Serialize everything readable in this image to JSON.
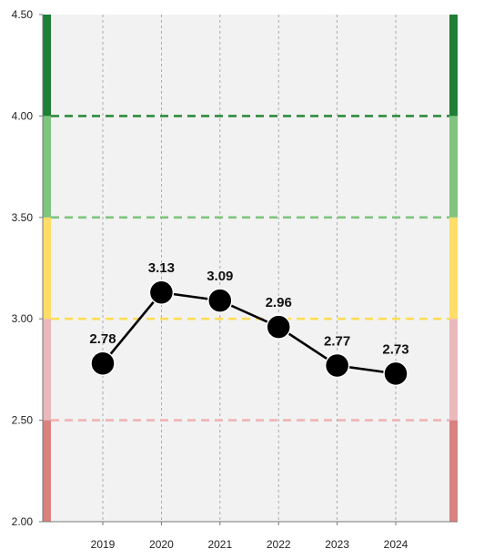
{
  "chart_data": {
    "type": "line",
    "categories": [
      "2019",
      "2020",
      "2021",
      "2022",
      "2023",
      "2024"
    ],
    "series": [
      {
        "values": [
          2.78,
          3.13,
          3.09,
          2.96,
          2.77,
          2.73
        ],
        "labels": [
          "2.78",
          "3.13",
          "3.09",
          "2.96",
          "2.77",
          "2.73"
        ]
      }
    ],
    "ylim": [
      2.0,
      4.5
    ],
    "yticks": [
      "2.00",
      "2.50",
      "3.00",
      "3.50",
      "4.00",
      "4.50"
    ],
    "ytick_values": [
      2.0,
      2.5,
      3.0,
      3.5,
      4.0,
      4.5
    ],
    "grid": true,
    "bands": [
      {
        "from": 2.0,
        "to": 2.5,
        "color": "#d98080"
      },
      {
        "from": 2.5,
        "to": 3.0,
        "color": "#e9b9bb"
      },
      {
        "from": 3.0,
        "to": 3.5,
        "color": "#ffdd66"
      },
      {
        "from": 3.5,
        "to": 4.0,
        "color": "#7fc47f"
      },
      {
        "from": 4.0,
        "to": 4.5,
        "color": "#1e7f35"
      }
    ],
    "thresholds": [
      {
        "value": 2.5,
        "color": "#f0b3b3"
      },
      {
        "value": 3.0,
        "color": "#ffdd55"
      },
      {
        "value": 3.5,
        "color": "#7fc47f"
      },
      {
        "value": 4.0,
        "color": "#2e8b3e"
      }
    ],
    "colors": {
      "plot_background": "#f2f2f2",
      "line": "#000000",
      "marker": "#000000"
    }
  }
}
